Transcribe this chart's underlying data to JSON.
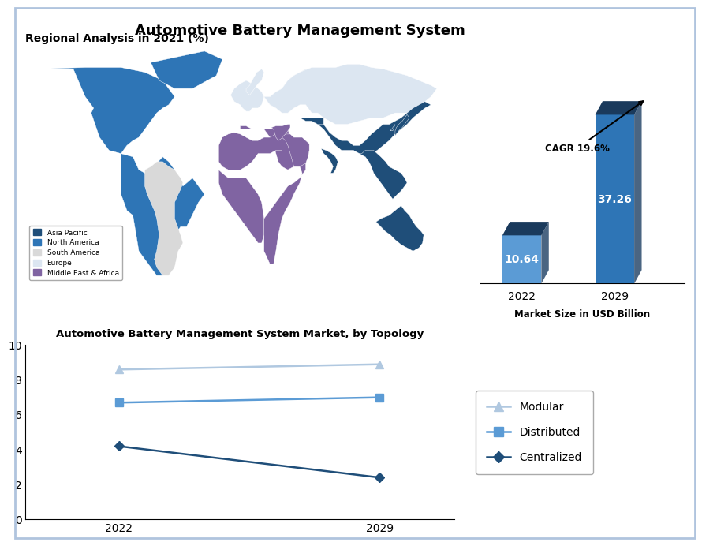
{
  "main_title": "Automotive Battery Management System",
  "map_subtitle": "Regional Analysis in 2021 (%)",
  "bar_title": "Market Size in USD Billion",
  "line_title": "Automotive Battery Management System Market, by Topology",
  "bar_years": [
    "2022",
    "2029"
  ],
  "bar_values": [
    10.64,
    37.26
  ],
  "bar_color_2022": "#5b9bd5",
  "bar_color_2029": "#2e75b6",
  "bar_top_color": "#1a3a5c",
  "bar_side_color": "#2a4a6c",
  "cagr_text": "CAGR 19.6%",
  "line_years": [
    2022,
    2029
  ],
  "modular_values": [
    8.6,
    8.9
  ],
  "distributed_values": [
    6.7,
    7.0
  ],
  "centralized_values": [
    4.2,
    2.4
  ],
  "modular_color": "#b0c8e0",
  "distributed_color": "#5b9bd5",
  "centralized_color": "#1f4e79",
  "line_ylim": [
    0,
    10
  ],
  "line_yticks": [
    0,
    2,
    4,
    6,
    8,
    10
  ],
  "map_colors": {
    "Asia Pacific": "#1f4e79",
    "North America": "#2e75b6",
    "South America": "#d9d9d9",
    "Europe": "#dce6f1",
    "Middle East & Africa": "#8064a2",
    "Ocean": "#e8f4f8"
  },
  "background_color": "#ffffff"
}
